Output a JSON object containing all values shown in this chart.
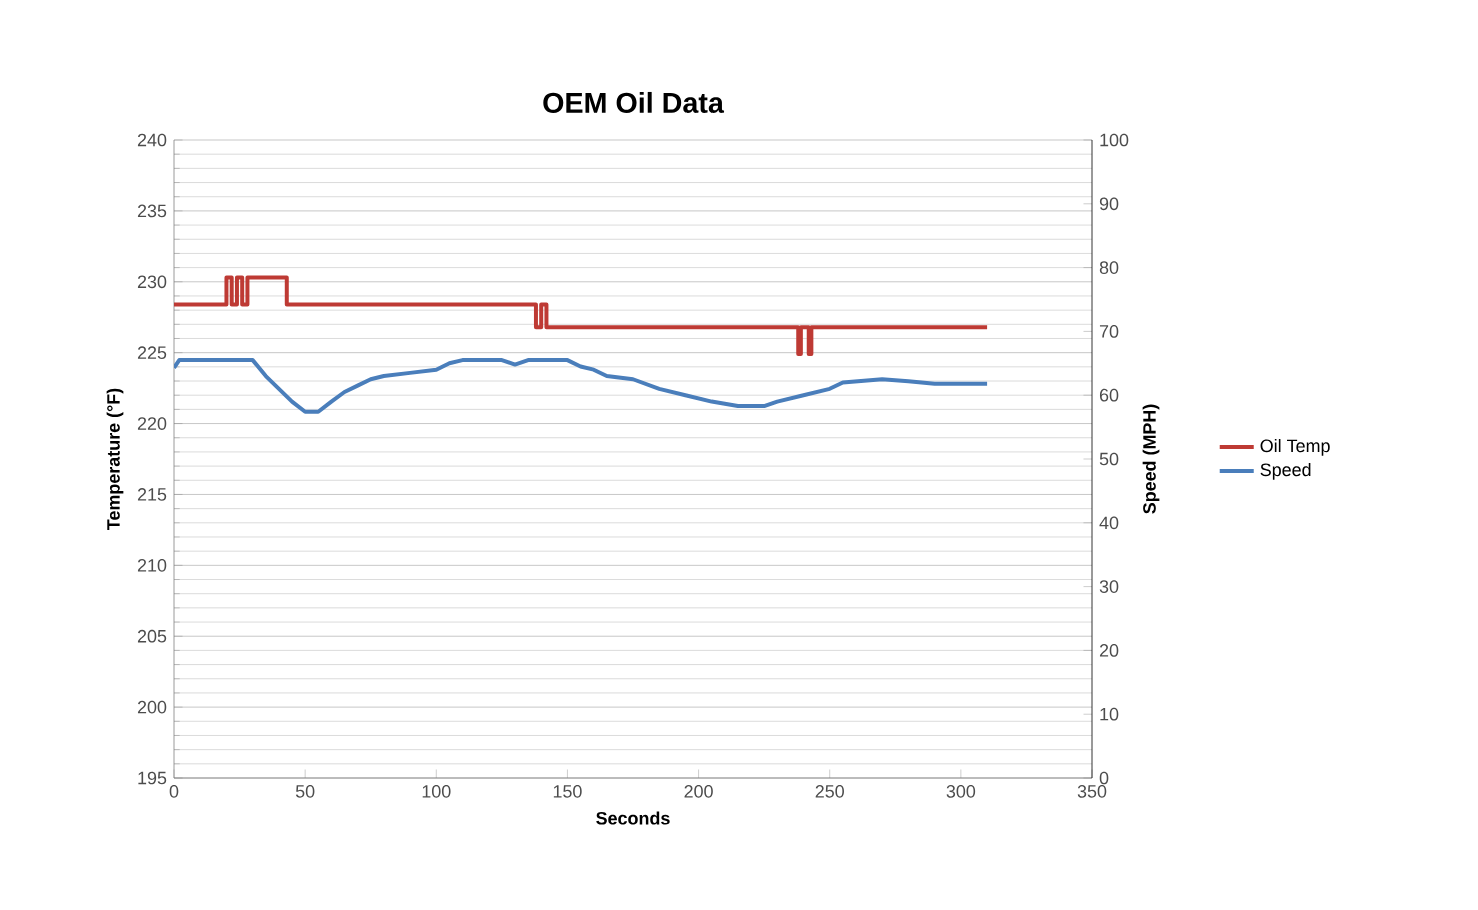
{
  "chart_data": {
    "type": "line",
    "title": "OEM Oil Data",
    "xlabel": "Seconds",
    "ylabel": "Temperature (°F)",
    "y2label": "Speed (MPH)",
    "xlim": [
      0,
      350
    ],
    "xticks": [
      0,
      50,
      100,
      150,
      200,
      250,
      300,
      350
    ],
    "ylim": [
      195,
      240
    ],
    "yticks": [
      195,
      200,
      205,
      210,
      215,
      220,
      225,
      230,
      235,
      240
    ],
    "y2lim": [
      0,
      100
    ],
    "y2ticks": [
      0,
      10,
      20,
      30,
      40,
      50,
      60,
      70,
      80,
      90,
      100
    ],
    "grid": "y",
    "legend": "right",
    "marker": "none",
    "line_style": "solid",
    "series": [
      {
        "name": "Oil Temp",
        "color": "#be3a34",
        "axis": "y",
        "x": [
          0,
          20,
          20,
          22,
          22,
          24,
          24,
          26,
          26,
          28,
          28,
          43,
          43,
          138,
          138,
          140,
          140,
          142,
          142,
          238,
          238,
          239,
          239,
          242,
          242,
          243,
          243,
          310
        ],
        "values": [
          228.4,
          228.4,
          230.3,
          230.3,
          228.4,
          228.4,
          230.3,
          230.3,
          228.4,
          228.4,
          230.3,
          230.3,
          228.4,
          228.4,
          226.8,
          226.8,
          228.4,
          228.4,
          226.8,
          226.8,
          224.9,
          224.9,
          226.8,
          226.8,
          224.9,
          224.9,
          226.8,
          226.8
        ]
      },
      {
        "name": "Speed",
        "color": "#4a7ebb",
        "axis": "y2",
        "x": [
          0,
          2,
          30,
          35,
          40,
          45,
          50,
          55,
          60,
          65,
          70,
          75,
          80,
          90,
          100,
          105,
          110,
          125,
          130,
          135,
          150,
          155,
          160,
          165,
          175,
          185,
          195,
          205,
          215,
          225,
          230,
          240,
          250,
          255,
          270,
          280,
          290,
          310
        ],
        "values": [
          64.3,
          65.5,
          65.5,
          63,
          61,
          59,
          57.4,
          57.4,
          59,
          60.5,
          61.5,
          62.5,
          63,
          63.5,
          64,
          65,
          65.5,
          65.5,
          64.8,
          65.5,
          65.5,
          64.5,
          64,
          63,
          62.5,
          61,
          60,
          59,
          58.3,
          58.3,
          59,
          60,
          61,
          62,
          62.5,
          62.2,
          61.8,
          61.8
        ]
      }
    ]
  }
}
